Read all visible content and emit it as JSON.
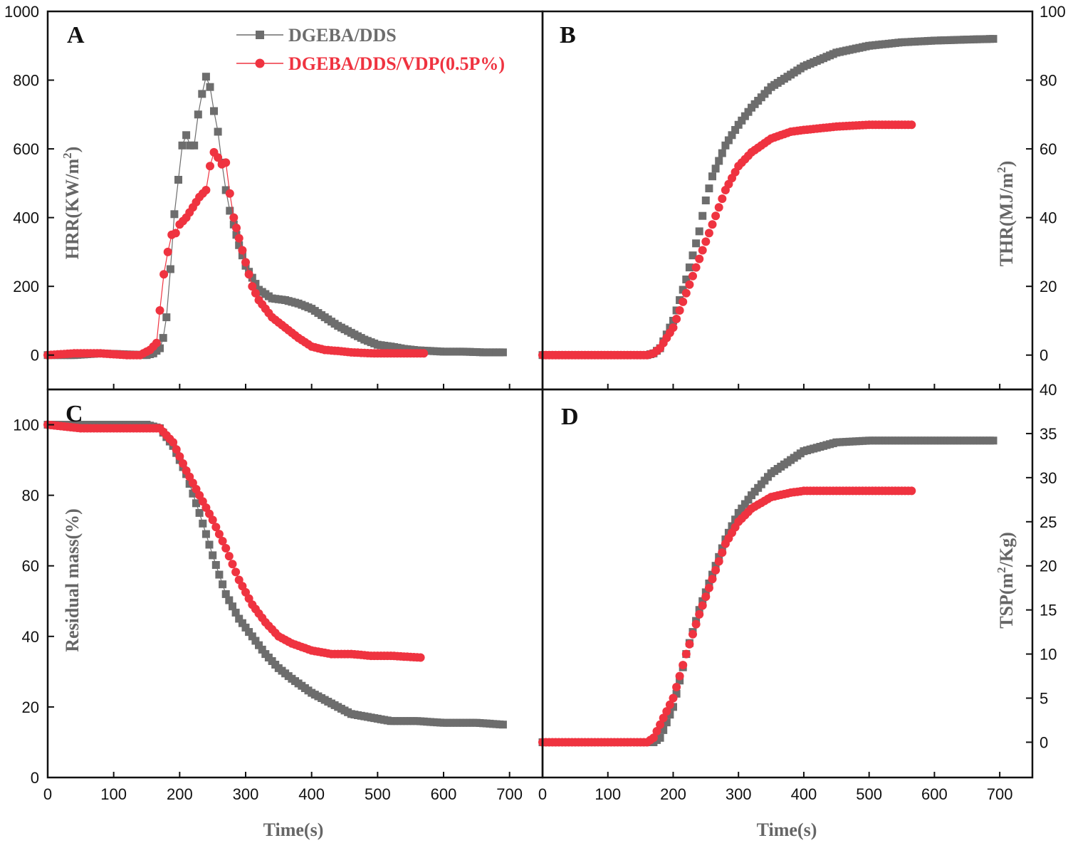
{
  "colors": {
    "series1": "#6d6d6d",
    "series2": "#ef3340",
    "axis": "#111111",
    "axis_title": "#666666"
  },
  "legend": [
    {
      "label": "DGEBA/DDS",
      "marker": "square"
    },
    {
      "label": "DGEBA/DDS/VDP(0.5P%)",
      "marker": "circle"
    }
  ],
  "x_title_left": "Time(s)",
  "x_title_right": "Time(s)",
  "chart_data": [
    {
      "id": "A",
      "type": "scatter",
      "panel_label": "A",
      "ylabel": "HRR(KW/m2)",
      "ylabel_base": "HRR(KW/m",
      "ylabel_sup": "2",
      "ylabel_tail": ")",
      "xlim": [
        0,
        750
      ],
      "ylim": [
        -100,
        1000
      ],
      "xticks": [
        0,
        100,
        200,
        300,
        400,
        500,
        600,
        700
      ],
      "yticks": [
        0,
        200,
        400,
        600,
        800,
        1000
      ],
      "series": [
        {
          "name": "DGEBA/DDS",
          "marker": "square",
          "line": true,
          "x": [
            0,
            40,
            80,
            120,
            150,
            160,
            170,
            175,
            180,
            186,
            192,
            198,
            204,
            210,
            216,
            222,
            228,
            234,
            240,
            246,
            252,
            258,
            264,
            270,
            276,
            282,
            290,
            300,
            320,
            340,
            360,
            380,
            400,
            420,
            440,
            460,
            480,
            500,
            520,
            540,
            560,
            580,
            600,
            630,
            660,
            690
          ],
          "y": [
            0,
            0,
            5,
            2,
            0,
            5,
            20,
            50,
            110,
            250,
            410,
            510,
            610,
            640,
            610,
            610,
            700,
            760,
            810,
            780,
            710,
            650,
            560,
            480,
            420,
            380,
            320,
            260,
            190,
            165,
            160,
            150,
            135,
            110,
            85,
            65,
            45,
            30,
            25,
            18,
            14,
            12,
            10,
            10,
            8,
            8
          ]
        },
        {
          "name": "DGEBA/DDS/VDP(0.5P%)",
          "marker": "circle",
          "line": true,
          "x": [
            0,
            40,
            80,
            120,
            140,
            155,
            165,
            170,
            176,
            182,
            188,
            194,
            200,
            210,
            220,
            230,
            240,
            246,
            252,
            258,
            264,
            270,
            276,
            282,
            290,
            300,
            310,
            320,
            340,
            360,
            380,
            400,
            420,
            440,
            460,
            480,
            500,
            520,
            540,
            570
          ],
          "y": [
            0,
            5,
            5,
            0,
            0,
            15,
            35,
            130,
            235,
            300,
            350,
            355,
            380,
            400,
            430,
            460,
            480,
            550,
            590,
            575,
            555,
            560,
            470,
            400,
            340,
            270,
            200,
            160,
            110,
            80,
            50,
            25,
            15,
            12,
            8,
            6,
            5,
            5,
            5,
            5
          ]
        }
      ]
    },
    {
      "id": "B",
      "type": "scatter",
      "panel_label": "B",
      "ylabel": "THR(MJ/m2)",
      "ylabel_base": "THR(MJ/m",
      "ylabel_sup": "2",
      "ylabel_tail": ")",
      "xlim": [
        0,
        750
      ],
      "ylim": [
        -10,
        100
      ],
      "xticks": [
        0,
        100,
        200,
        300,
        400,
        500,
        600,
        700
      ],
      "yticks": [
        0,
        20,
        40,
        60,
        80,
        100
      ],
      "series": [
        {
          "name": "DGEBA/DDS",
          "marker": "square",
          "line": false,
          "x": [
            0,
            100,
            160,
            170,
            180,
            200,
            220,
            240,
            250,
            260,
            280,
            300,
            320,
            350,
            400,
            450,
            500,
            550,
            600,
            650,
            690
          ],
          "y": [
            0,
            0,
            0,
            0.5,
            2,
            10,
            22,
            36,
            45,
            52,
            61,
            67,
            72,
            78,
            84,
            88,
            90,
            91,
            91.5,
            91.8,
            92
          ]
        },
        {
          "name": "DGEBA/DDS/VDP(0.5P%)",
          "marker": "circle",
          "line": false,
          "x": [
            0,
            100,
            160,
            170,
            180,
            200,
            220,
            240,
            260,
            280,
            300,
            320,
            350,
            380,
            400,
            450,
            500,
            565
          ],
          "y": [
            0,
            0,
            0,
            0.5,
            2,
            8,
            18,
            28,
            38,
            48,
            55,
            59,
            63,
            65,
            65.5,
            66.5,
            67,
            67
          ]
        }
      ]
    },
    {
      "id": "C",
      "type": "scatter",
      "panel_label": "C",
      "ylabel": "Residual mass(%)",
      "ylabel_base": "Residual mass(%)",
      "ylabel_sup": "",
      "ylabel_tail": "",
      "xlim": [
        0,
        750
      ],
      "ylim": [
        0,
        110
      ],
      "xticks": [
        0,
        100,
        200,
        300,
        400,
        500,
        600,
        700
      ],
      "yticks": [
        0,
        20,
        40,
        60,
        80,
        100
      ],
      "series": [
        {
          "name": "DGEBA/DDS",
          "marker": "square",
          "line": true,
          "x": [
            0,
            50,
            100,
            150,
            170,
            190,
            210,
            230,
            250,
            270,
            290,
            310,
            330,
            350,
            370,
            400,
            430,
            460,
            490,
            520,
            560,
            600,
            650,
            690
          ],
          "y": [
            100,
            100,
            100,
            100,
            99,
            94,
            86,
            75,
            63,
            52,
            45,
            40,
            35,
            31,
            28,
            24,
            21,
            18,
            17,
            16,
            16,
            15.5,
            15.5,
            15
          ]
        },
        {
          "name": "DGEBA/DDS/VDP(0.5P%)",
          "marker": "circle",
          "line": true,
          "x": [
            0,
            50,
            100,
            150,
            170,
            190,
            210,
            230,
            250,
            270,
            290,
            310,
            330,
            350,
            370,
            400,
            430,
            460,
            490,
            520,
            565
          ],
          "y": [
            100,
            99,
            99,
            99,
            99,
            95,
            87,
            80,
            73,
            65,
            56,
            49,
            44,
            40,
            38,
            36,
            35,
            35,
            34.5,
            34.5,
            34
          ]
        }
      ]
    },
    {
      "id": "D",
      "type": "scatter",
      "panel_label": "D",
      "ylabel": "TSP(m2/Kg)",
      "ylabel_base": "TSP(m",
      "ylabel_sup": "2",
      "ylabel_tail": "/Kg)",
      "xlim": [
        0,
        750
      ],
      "ylim": [
        -4,
        40
      ],
      "xticks": [
        0,
        100,
        200,
        300,
        400,
        500,
        600,
        700
      ],
      "yticks": [
        0,
        5,
        10,
        15,
        20,
        25,
        30,
        35,
        40
      ],
      "series": [
        {
          "name": "DGEBA/DDS",
          "marker": "square",
          "line": false,
          "x": [
            0,
            100,
            160,
            170,
            180,
            200,
            220,
            240,
            260,
            280,
            300,
            320,
            350,
            380,
            400,
            450,
            500,
            550,
            600,
            650,
            690
          ],
          "y": [
            0,
            0,
            0,
            0,
            0.5,
            4,
            10,
            15,
            19,
            23,
            26,
            28,
            30.5,
            32,
            33,
            34,
            34.2,
            34.2,
            34.2,
            34.2,
            34.2
          ]
        },
        {
          "name": "DGEBA/DDS/VDP(0.5P%)",
          "marker": "circle",
          "line": false,
          "x": [
            0,
            100,
            160,
            170,
            180,
            200,
            220,
            240,
            260,
            280,
            300,
            320,
            350,
            380,
            400,
            450,
            500,
            565
          ],
          "y": [
            0,
            0,
            0,
            0.5,
            2,
            5,
            10,
            14.5,
            18.5,
            22.5,
            25,
            26.5,
            27.8,
            28.3,
            28.5,
            28.5,
            28.5,
            28.5
          ]
        }
      ]
    }
  ]
}
